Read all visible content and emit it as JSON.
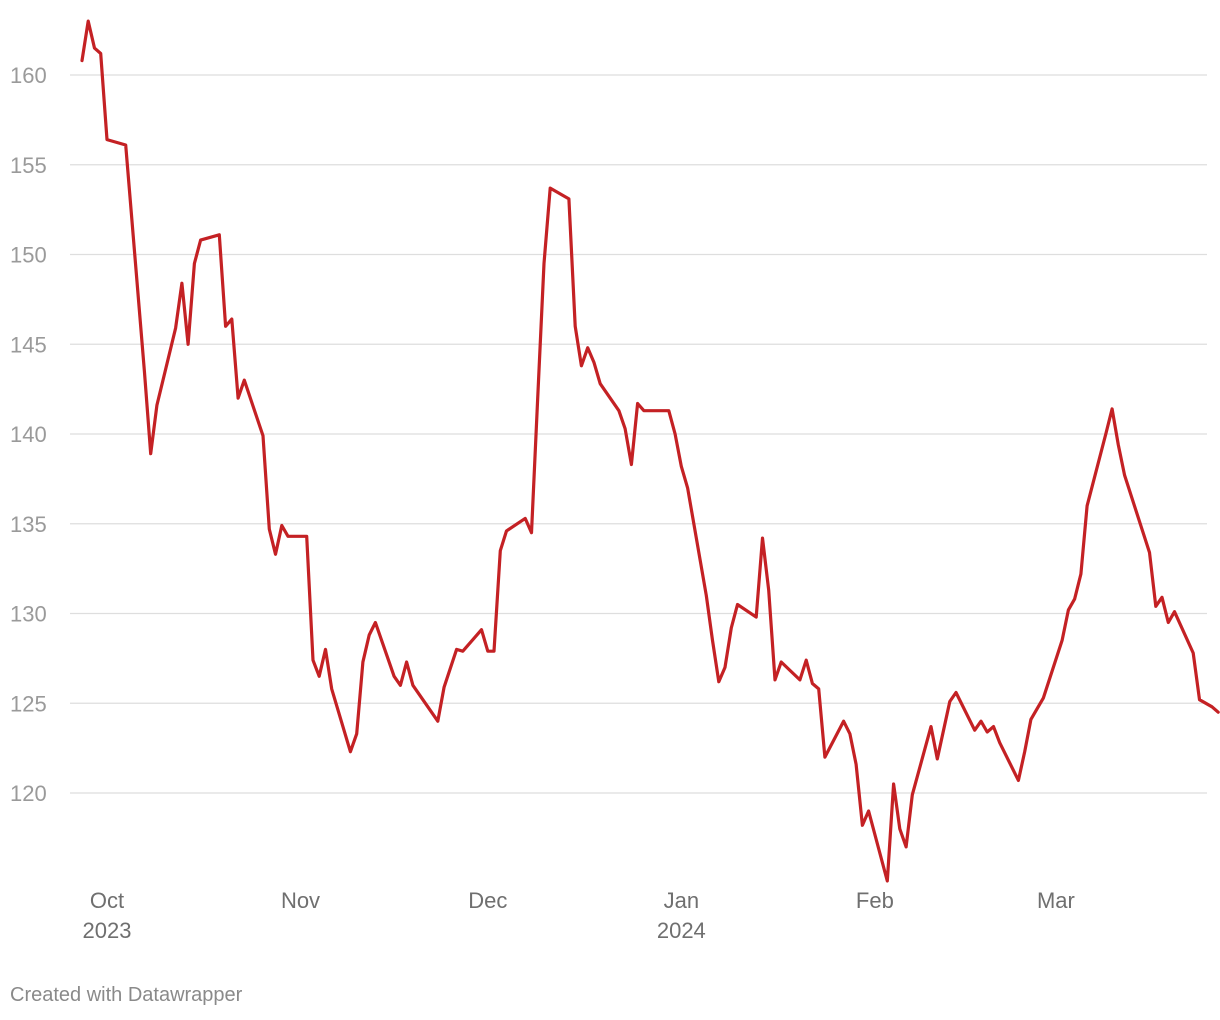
{
  "credit": "Created with Datawrapper",
  "colors": {
    "line": "#c42124",
    "grid": "#dedede",
    "tick": "#9a9a9a"
  },
  "chart_data": {
    "type": "line",
    "title": "",
    "xlabel": "",
    "ylabel": "",
    "grid": true,
    "ylim": [
      115,
      163
    ],
    "xlim": [
      "2023-09-27",
      "2024-03-22"
    ],
    "y_ticks": [
      120,
      125,
      130,
      135,
      140,
      145,
      150,
      155,
      160
    ],
    "x_ticks": [
      {
        "date": "2023-10-01",
        "label": "Oct",
        "sub": "2023"
      },
      {
        "date": "2023-11-01",
        "label": "Nov",
        "sub": ""
      },
      {
        "date": "2023-12-01",
        "label": "Dec",
        "sub": ""
      },
      {
        "date": "2024-01-01",
        "label": "Jan",
        "sub": "2024"
      },
      {
        "date": "2024-02-01",
        "label": "Feb",
        "sub": ""
      },
      {
        "date": "2024-03-01",
        "label": "Mar",
        "sub": ""
      }
    ],
    "series": [
      {
        "points": [
          [
            "2023-09-27",
            160.8
          ],
          [
            "2023-09-28",
            163.0
          ],
          [
            "2023-09-29",
            161.5
          ],
          [
            "2023-09-30",
            161.2
          ],
          [
            "2023-10-01",
            156.4
          ],
          [
            "2023-10-04",
            156.1
          ],
          [
            "2023-10-07",
            143.5
          ],
          [
            "2023-10-08",
            138.9
          ],
          [
            "2023-10-09",
            141.6
          ],
          [
            "2023-10-12",
            145.9
          ],
          [
            "2023-10-13",
            148.4
          ],
          [
            "2023-10-14",
            145.0
          ],
          [
            "2023-10-15",
            149.5
          ],
          [
            "2023-10-16",
            150.8
          ],
          [
            "2023-10-19",
            151.1
          ],
          [
            "2023-10-20",
            146.0
          ],
          [
            "2023-10-21",
            146.4
          ],
          [
            "2023-10-22",
            142.0
          ],
          [
            "2023-10-23",
            143.0
          ],
          [
            "2023-10-26",
            139.9
          ],
          [
            "2023-10-27",
            134.7
          ],
          [
            "2023-10-28",
            133.3
          ],
          [
            "2023-10-29",
            134.9
          ],
          [
            "2023-10-30",
            134.3
          ],
          [
            "2023-11-02",
            134.3
          ],
          [
            "2023-11-03",
            127.4
          ],
          [
            "2023-11-04",
            126.5
          ],
          [
            "2023-11-05",
            128.0
          ],
          [
            "2023-11-06",
            125.8
          ],
          [
            "2023-11-09",
            122.3
          ],
          [
            "2023-11-10",
            123.3
          ],
          [
            "2023-11-11",
            127.3
          ],
          [
            "2023-11-12",
            128.8
          ],
          [
            "2023-11-13",
            129.5
          ],
          [
            "2023-11-16",
            126.5
          ],
          [
            "2023-11-17",
            126.0
          ],
          [
            "2023-11-18",
            127.3
          ],
          [
            "2023-11-19",
            126.0
          ],
          [
            "2023-11-23",
            124.0
          ],
          [
            "2023-11-24",
            125.9
          ],
          [
            "2023-11-26",
            128.0
          ],
          [
            "2023-11-27",
            127.9
          ],
          [
            "2023-11-30",
            129.1
          ],
          [
            "2023-12-01",
            127.9
          ],
          [
            "2023-12-02",
            127.9
          ],
          [
            "2023-12-03",
            133.5
          ],
          [
            "2023-12-04",
            134.6
          ],
          [
            "2023-12-07",
            135.3
          ],
          [
            "2023-12-08",
            134.5
          ],
          [
            "2023-12-09",
            142.0
          ],
          [
            "2023-12-10",
            149.5
          ],
          [
            "2023-12-11",
            153.7
          ],
          [
            "2023-12-14",
            153.1
          ],
          [
            "2023-12-15",
            146.0
          ],
          [
            "2023-12-16",
            143.8
          ],
          [
            "2023-12-17",
            144.8
          ],
          [
            "2023-12-18",
            144.0
          ],
          [
            "2023-12-19",
            142.8
          ],
          [
            "2023-12-22",
            141.3
          ],
          [
            "2023-12-23",
            140.3
          ],
          [
            "2023-12-24",
            138.3
          ],
          [
            "2023-12-25",
            141.7
          ],
          [
            "2023-12-26",
            141.3
          ],
          [
            "2023-12-30",
            141.3
          ],
          [
            "2023-12-31",
            140.0
          ],
          [
            "2024-01-01",
            138.2
          ],
          [
            "2024-01-02",
            137.0
          ],
          [
            "2024-01-05",
            131.0
          ],
          [
            "2024-01-06",
            128.5
          ],
          [
            "2024-01-07",
            126.2
          ],
          [
            "2024-01-08",
            127.0
          ],
          [
            "2024-01-09",
            129.2
          ],
          [
            "2024-01-10",
            130.5
          ],
          [
            "2024-01-13",
            129.8
          ],
          [
            "2024-01-14",
            134.2
          ],
          [
            "2024-01-15",
            131.3
          ],
          [
            "2024-01-16",
            126.3
          ],
          [
            "2024-01-17",
            127.3
          ],
          [
            "2024-01-20",
            126.3
          ],
          [
            "2024-01-21",
            127.4
          ],
          [
            "2024-01-22",
            126.1
          ],
          [
            "2024-01-23",
            125.8
          ],
          [
            "2024-01-24",
            122.0
          ],
          [
            "2024-01-27",
            124.0
          ],
          [
            "2024-01-28",
            123.3
          ],
          [
            "2024-01-29",
            121.6
          ],
          [
            "2024-01-30",
            118.2
          ],
          [
            "2024-01-31",
            119.0
          ],
          [
            "2024-02-03",
            115.1
          ],
          [
            "2024-02-04",
            120.5
          ],
          [
            "2024-02-05",
            118.0
          ],
          [
            "2024-02-06",
            117.0
          ],
          [
            "2024-02-07",
            119.9
          ],
          [
            "2024-02-10",
            123.7
          ],
          [
            "2024-02-11",
            121.9
          ],
          [
            "2024-02-13",
            125.1
          ],
          [
            "2024-02-14",
            125.6
          ],
          [
            "2024-02-17",
            123.5
          ],
          [
            "2024-02-18",
            124.0
          ],
          [
            "2024-02-19",
            123.4
          ],
          [
            "2024-02-20",
            123.7
          ],
          [
            "2024-02-21",
            122.8
          ],
          [
            "2024-02-24",
            120.7
          ],
          [
            "2024-02-25",
            122.3
          ],
          [
            "2024-02-26",
            124.1
          ],
          [
            "2024-02-27",
            124.7
          ],
          [
            "2024-02-28",
            125.3
          ],
          [
            "2024-03-02",
            128.5
          ],
          [
            "2024-03-03",
            130.2
          ],
          [
            "2024-03-04",
            130.8
          ],
          [
            "2024-03-05",
            132.2
          ],
          [
            "2024-03-06",
            136.0
          ],
          [
            "2024-03-09",
            140.0
          ],
          [
            "2024-03-10",
            141.4
          ],
          [
            "2024-03-11",
            139.4
          ],
          [
            "2024-03-12",
            137.7
          ],
          [
            "2024-03-16",
            133.4
          ],
          [
            "2024-03-17",
            130.4
          ],
          [
            "2024-03-18",
            130.9
          ],
          [
            "2024-03-19",
            129.5
          ],
          [
            "2024-03-20",
            130.1
          ],
          [
            "2024-03-23",
            127.8
          ],
          [
            "2024-03-24",
            125.2
          ],
          [
            "2024-03-26",
            124.8
          ],
          [
            "2024-03-27",
            124.5
          ]
        ]
      }
    ]
  }
}
